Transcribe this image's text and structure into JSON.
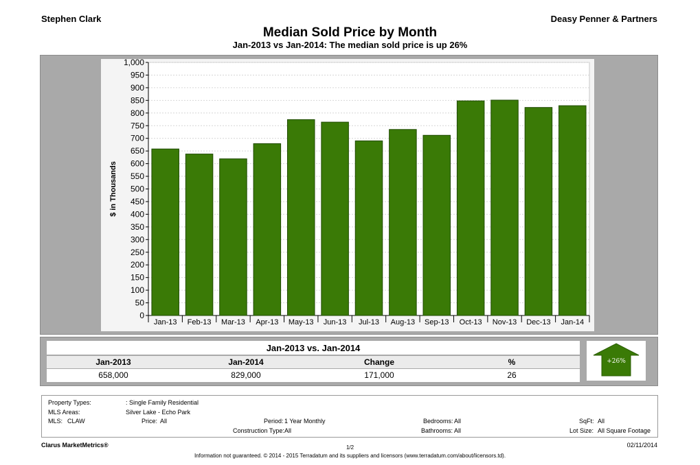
{
  "header": {
    "agent": "Stephen Clark",
    "company": "Deasy Penner & Partners",
    "title": "Median Sold Price by Month",
    "subtitle": "Jan-2013 vs Jan-2014: The median sold price is up 26%"
  },
  "chart_data": {
    "type": "bar",
    "categories": [
      "Jan-13",
      "Feb-13",
      "Mar-13",
      "Apr-13",
      "May-13",
      "Jun-13",
      "Jul-13",
      "Aug-13",
      "Sep-13",
      "Oct-13",
      "Nov-13",
      "Dec-13",
      "Jan-14"
    ],
    "values": [
      658,
      638,
      619,
      679,
      774,
      764,
      690,
      735,
      712,
      848,
      851,
      822,
      829
    ],
    "ylabel": "$ in Thousands",
    "ylim": [
      0,
      1000
    ],
    "yticks": [
      "0",
      "50",
      "100",
      "150",
      "200",
      "250",
      "300",
      "350",
      "400",
      "450",
      "500",
      "550",
      "600",
      "650",
      "700",
      "750",
      "800",
      "850",
      "900",
      "950",
      "1,000"
    ],
    "ytick_values": [
      0,
      50,
      100,
      150,
      200,
      250,
      300,
      350,
      400,
      450,
      500,
      550,
      600,
      650,
      700,
      750,
      800,
      850,
      900,
      950,
      1000
    ],
    "grid": true,
    "bar_color": "#3a7a06"
  },
  "summary": {
    "caption": "Jan-2013 vs. Jan-2014",
    "headers": [
      "Jan-2013",
      "Jan-2014",
      "Change",
      "%"
    ],
    "values": [
      "658,000",
      "829,000",
      "171,000",
      "26"
    ],
    "badge": "+26%",
    "badge_color": "#3a7a06"
  },
  "criteria": {
    "property_types_label": "Property Types:",
    "property_types_value": ": Single Family Residential",
    "mls_areas_label": "MLS Areas:",
    "mls_areas_value": "Silver Lake - Echo Park",
    "mls_label": "MLS:",
    "mls_value": "CLAW",
    "price_label": "Price:",
    "price_value": "All",
    "period_label": "Period:",
    "period_value": "1 Year Monthly",
    "construction_label": "Construction Type:",
    "construction_value": "All",
    "bedrooms_label": "Bedrooms:",
    "bedrooms_value": "All",
    "bathrooms_label": "Bathrooms:",
    "bathrooms_value": "All",
    "sqft_label": "SqFt:",
    "sqft_value": "All",
    "lotsize_label": "Lot Size:",
    "lotsize_value": "All Square Footage"
  },
  "footer": {
    "brand": "Clarus MarketMetrics®",
    "date": "02/11/2014",
    "page": "1/2",
    "disclaimer": "Information not guaranteed. © 2014 - 2015 Terradatum and its suppliers and licensors (www.terradatum.com/about/licensors.td)."
  }
}
